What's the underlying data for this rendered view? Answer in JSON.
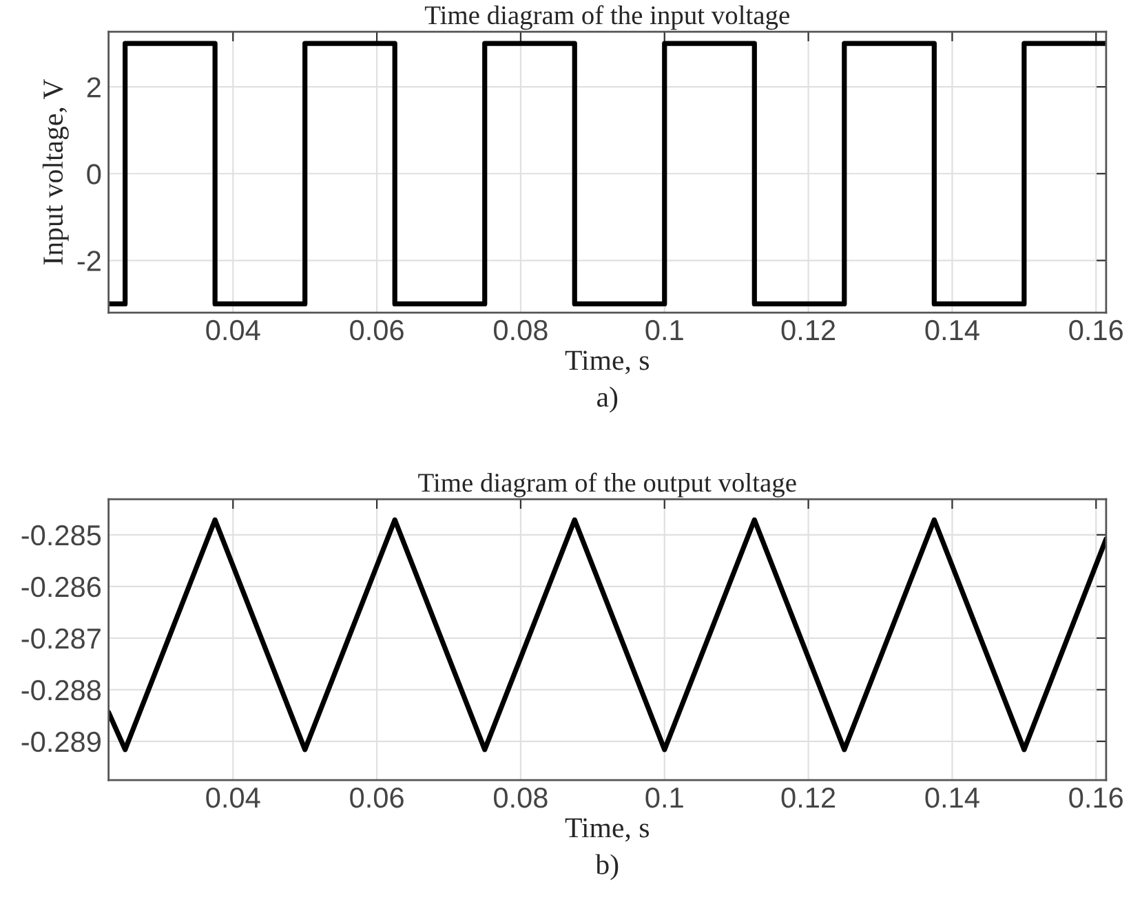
{
  "chart_data": [
    {
      "type": "line",
      "title": "Time diagram of the input voltage",
      "xlabel": "Time, s",
      "ylabel": "Input voltage, V",
      "series": [
        {
          "color": "#000000",
          "x": [
            0.0227,
            0.025,
            0.025,
            0.0375,
            0.0375,
            0.05,
            0.05,
            0.0625,
            0.0625,
            0.075,
            0.075,
            0.0875,
            0.0875,
            0.1,
            0.1,
            0.1125,
            0.1125,
            0.125,
            0.125,
            0.1375,
            0.1375,
            0.15,
            0.15,
            0.1614
          ],
          "values": [
            -3,
            -3,
            3,
            3,
            -3,
            -3,
            3,
            3,
            -3,
            -3,
            3,
            3,
            -3,
            -3,
            3,
            3,
            -3,
            -3,
            3,
            3,
            -3,
            -3,
            3,
            3
          ]
        }
      ],
      "xlim": [
        0.0227,
        0.1614
      ],
      "ylim": [
        -3.2,
        3.27
      ],
      "xticks": [
        {
          "value": 0.04,
          "label": "0.04"
        },
        {
          "value": 0.06,
          "label": "0.06"
        },
        {
          "value": 0.08,
          "label": "0.08"
        },
        {
          "value": 0.1,
          "label": "0.1"
        },
        {
          "value": 0.12,
          "label": "0.12"
        },
        {
          "value": 0.14,
          "label": "0.14"
        },
        {
          "value": 0.16,
          "label": "0.16"
        }
      ],
      "yticks": [
        -2,
        0,
        2
      ],
      "grid": true,
      "annotations": [
        "a)"
      ]
    },
    {
      "type": "line",
      "title": "Time diagram of the output voltage",
      "xlabel": "Time, s",
      "series": [
        {
          "color": "#000000",
          "x": [
            0.0227,
            0.025,
            0.0375,
            0.05,
            0.0625,
            0.075,
            0.0875,
            0.1,
            0.1125,
            0.125,
            0.1375,
            0.15,
            0.1614
          ],
          "values": [
            -0.28844,
            -0.28916,
            -0.28471,
            -0.28916,
            -0.28471,
            -0.28916,
            -0.28471,
            -0.28916,
            -0.28471,
            -0.28916,
            -0.28471,
            -0.28916,
            -0.28508
          ]
        }
      ],
      "xlim": [
        0.0227,
        0.1614
      ],
      "ylim": [
        -0.28975,
        -0.28431
      ],
      "xticks": [
        {
          "value": 0.04,
          "label": "0.04"
        },
        {
          "value": 0.06,
          "label": "0.06"
        },
        {
          "value": 0.08,
          "label": "0.08"
        },
        {
          "value": 0.1,
          "label": "0.1"
        },
        {
          "value": 0.12,
          "label": "0.12"
        },
        {
          "value": 0.14,
          "label": "0.14"
        },
        {
          "value": 0.16,
          "label": "0.16"
        }
      ],
      "yticks": [
        {
          "value": -0.289,
          "label": "-0.289"
        },
        {
          "value": -0.288,
          "label": "-0.288"
        },
        {
          "value": -0.287,
          "label": "-0.287"
        },
        {
          "value": -0.286,
          "label": "-0.286"
        },
        {
          "value": -0.285,
          "label": "-0.285"
        }
      ],
      "grid": true,
      "annotations": [
        "b)"
      ]
    }
  ]
}
